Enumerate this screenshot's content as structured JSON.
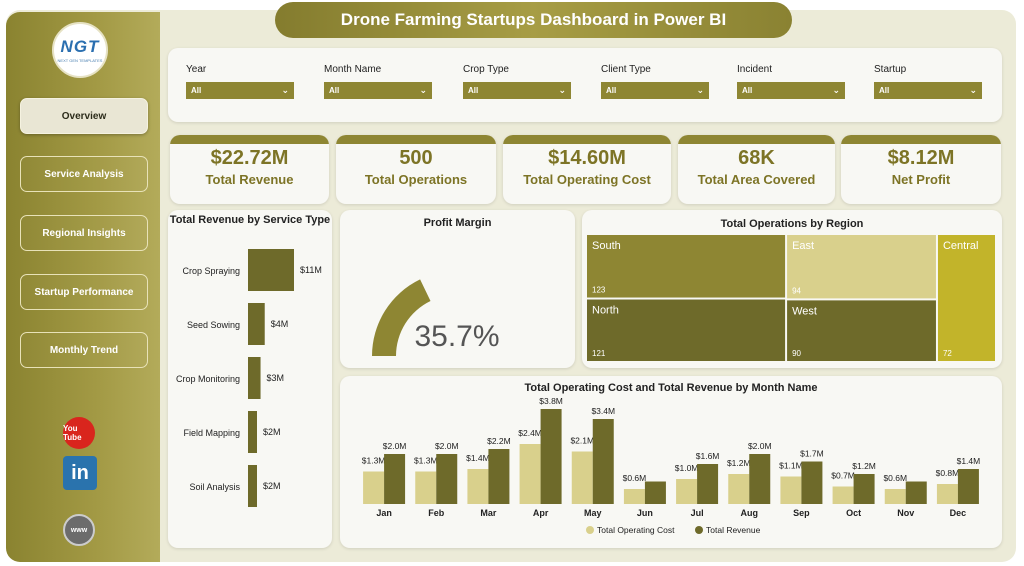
{
  "title": "Drone Farming Startups Dashboard in Power BI",
  "logo": {
    "text": "NGT",
    "subtext": "NEXT GEN TEMPLATES"
  },
  "nav": {
    "items": [
      {
        "label": "Overview",
        "active": true
      },
      {
        "label": "Service Analysis",
        "active": false
      },
      {
        "label": "Regional Insights",
        "active": false
      },
      {
        "label": "Startup Performance",
        "active": false
      },
      {
        "label": "Monthly Trend",
        "active": false
      }
    ]
  },
  "social": {
    "youtube": "You Tube",
    "linkedin": "in",
    "website": "www"
  },
  "filters": [
    {
      "label": "Year",
      "value": "All"
    },
    {
      "label": "Month Name",
      "value": "All"
    },
    {
      "label": "Crop Type",
      "value": "All"
    },
    {
      "label": "Client Type",
      "value": "All"
    },
    {
      "label": "Incident",
      "value": "All"
    },
    {
      "label": "Startup",
      "value": "All"
    }
  ],
  "kpis": [
    {
      "value": "$22.72M",
      "label": "Total Revenue"
    },
    {
      "value": "500",
      "label": "Total Operations"
    },
    {
      "value": "$14.60M",
      "label": "Total Operating Cost"
    },
    {
      "value": "68K",
      "label": "Total Area Covered"
    },
    {
      "value": "$8.12M",
      "label": "Net Profit"
    }
  ],
  "colors": {
    "primary": "#8e8633",
    "dark": "#6e6a2a",
    "light": "#d9d08c",
    "accent": "#c2b42a"
  },
  "chart_data": [
    {
      "type": "bar",
      "title": "Total Revenue by Service Type",
      "orientation": "horizontal",
      "categories": [
        "Crop Spraying",
        "Seed Sowing",
        "Crop Monitoring",
        "Field Mapping",
        "Soil Analysis"
      ],
      "values": [
        11,
        4,
        3,
        2,
        2
      ],
      "data_labels": [
        "$11M",
        "$4M",
        "$3M",
        "$2M",
        "$2M"
      ]
    },
    {
      "type": "gauge",
      "title": "Profit Margin",
      "value": 35.7,
      "display": "35.7%",
      "range": [
        0,
        100
      ]
    },
    {
      "type": "treemap",
      "title": "Total Operations by Region",
      "items": [
        {
          "name": "South",
          "value": 123
        },
        {
          "name": "North",
          "value": 121
        },
        {
          "name": "East",
          "value": 94
        },
        {
          "name": "West",
          "value": 90
        },
        {
          "name": "Central",
          "value": 72
        }
      ]
    },
    {
      "type": "bar",
      "title": "Total Operating Cost and Total Revenue by Month Name",
      "categories": [
        "Jan",
        "Feb",
        "Mar",
        "Apr",
        "May",
        "Jun",
        "Jul",
        "Aug",
        "Sep",
        "Oct",
        "Nov",
        "Dec"
      ],
      "series": [
        {
          "name": "Total Operating Cost",
          "values": [
            1.3,
            1.3,
            1.4,
            2.4,
            2.1,
            0.6,
            1.0,
            1.2,
            1.1,
            0.7,
            0.6,
            0.8
          ],
          "labels": [
            "$1.3M",
            "$1.3M",
            "$1.4M",
            "$2.4M",
            "$2.1M",
            "$0.6M",
            "$1.0M",
            "$1.2M",
            "$1.1M",
            "$0.7M",
            "$0.6M",
            "$0.8M"
          ]
        },
        {
          "name": "Total Revenue",
          "values": [
            2.0,
            2.0,
            2.2,
            3.8,
            3.4,
            0.9,
            1.6,
            2.0,
            1.7,
            1.2,
            0.9,
            1.4
          ],
          "labels": [
            "$2.0M",
            "$2.0M",
            "$2.2M",
            "$3.8M",
            "$3.4M",
            "",
            "$1.6M",
            "$2.0M",
            "$1.7M",
            "$1.2M",
            "",
            "$1.4M"
          ]
        }
      ],
      "legend": "bottom-center"
    }
  ]
}
